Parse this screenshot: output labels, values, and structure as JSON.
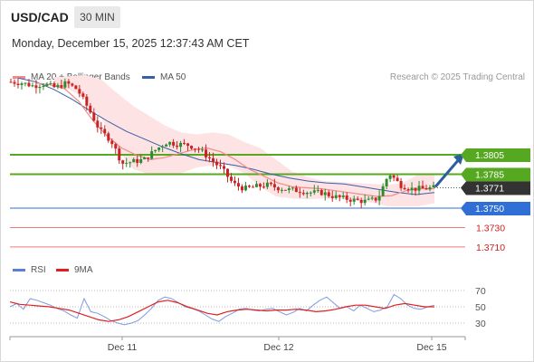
{
  "header": {
    "symbol": "USD/CAD",
    "timeframe": "30 MIN",
    "timestamp": "Monday, December 15, 2025 12:37:43 AM CET"
  },
  "legend": {
    "main": [
      {
        "label": "MA 20 + Bollinger Bands",
        "color": "#f08a8a"
      },
      {
        "label": "MA 50",
        "color": "#3a5fa8"
      }
    ],
    "credit": "Research © 2025 Trading Central",
    "rsi": [
      {
        "label": "RSI",
        "color": "#5b7fd6"
      },
      {
        "label": "9MA",
        "color": "#e02020"
      }
    ]
  },
  "colors": {
    "resistance": "#55a820",
    "pivot": "#2f6fd6",
    "support": "#f07a7a",
    "current": "#333333",
    "candle_up": "#2e8b2e",
    "candle_down": "#cc2222",
    "band_fill": "#fde3e3",
    "arrow": "#2c5e9e"
  },
  "chart_data": [
    {
      "type": "candlestick",
      "title": "USD/CAD",
      "x_ticks": [
        "Dec 11",
        "Dec 12",
        "Dec 15"
      ],
      "ylim": [
        1.37,
        1.39
      ],
      "grid": false,
      "levels": [
        {
          "value": 1.3805,
          "label": "1.3805",
          "kind": "resistance"
        },
        {
          "value": 1.3785,
          "label": "1.3785",
          "kind": "resistance"
        },
        {
          "value": 1.3771,
          "label": "1.3771",
          "kind": "current"
        },
        {
          "value": 1.375,
          "label": "1.3750",
          "kind": "pivot"
        },
        {
          "value": 1.373,
          "label": "1.3730",
          "kind": "support"
        },
        {
          "value": 1.371,
          "label": "1.3710",
          "kind": "support"
        }
      ],
      "close_path": [
        1.388,
        1.3879,
        1.3876,
        1.3878,
        1.3874,
        1.3879,
        1.3872,
        1.3852,
        1.383,
        1.382,
        1.3796,
        1.3798,
        1.38,
        1.381,
        1.3818,
        1.3816,
        1.3815,
        1.381,
        1.38,
        1.379,
        1.3775,
        1.377,
        1.3772,
        1.3774,
        1.3771,
        1.3769,
        1.3768,
        1.3766,
        1.3766,
        1.3762,
        1.376,
        1.3758,
        1.3757,
        1.376,
        1.3786,
        1.3774,
        1.377,
        1.377,
        1.3771
      ],
      "ma50_path": [
        1.3884,
        1.388,
        1.3872,
        1.3862,
        1.385,
        1.3839,
        1.3829,
        1.3821,
        1.3813,
        1.3806,
        1.38,
        1.3797,
        1.3794,
        1.379,
        1.3785,
        1.3781,
        1.3778,
        1.3776,
        1.3775,
        1.3772,
        1.3769,
        1.3766,
        1.3764,
        1.3766
      ],
      "ma20_path": [
        1.3879,
        1.3877,
        1.3873,
        1.386,
        1.384,
        1.3824,
        1.3812,
        1.3805,
        1.38,
        1.3802,
        1.3806,
        1.381,
        1.3812,
        1.3808,
        1.38,
        1.379,
        1.3783,
        1.3776,
        1.3772,
        1.3771,
        1.377,
        1.3768,
        1.3766,
        1.3764,
        1.3762,
        1.3763,
        1.3768,
        1.377,
        1.377
      ],
      "bb_upper_path": [
        1.3885,
        1.3886,
        1.3887,
        1.3882,
        1.3868,
        1.3855,
        1.3845,
        1.3835,
        1.3828,
        1.3826,
        1.3828,
        1.3826,
        1.3818,
        1.3812,
        1.38,
        1.3788,
        1.3782,
        1.3778,
        1.3777,
        1.3776,
        1.3775,
        1.3774,
        1.3776,
        1.3785,
        1.3785
      ],
      "bb_lower_path": [
        1.3875,
        1.3872,
        1.3862,
        1.3842,
        1.381,
        1.379,
        1.3785,
        1.3785,
        1.3786,
        1.3792,
        1.3794,
        1.3794,
        1.3786,
        1.3772,
        1.3762,
        1.376,
        1.3759,
        1.376,
        1.376,
        1.3758,
        1.3756,
        1.3752,
        1.3752,
        1.3752,
        1.3755
      ],
      "forecast_arrow": {
        "from": 1.3771,
        "to": 1.3805
      }
    },
    {
      "type": "line",
      "title": "RSI",
      "yticks": [
        70,
        50,
        30
      ],
      "ylim": [
        20,
        80
      ],
      "series": [
        {
          "name": "RSI",
          "values": [
            50,
            54,
            47,
            60,
            58,
            55,
            52,
            48,
            45,
            40,
            36,
            60,
            44,
            42,
            38,
            33,
            30,
            28,
            30,
            33,
            40,
            48,
            58,
            62,
            60,
            55,
            50,
            48,
            45,
            40,
            35,
            32,
            38,
            42,
            47,
            48,
            46,
            45,
            47,
            48,
            44,
            40,
            43,
            48,
            45,
            52,
            58,
            62,
            55,
            48,
            50,
            45,
            52,
            48,
            44,
            46,
            50,
            65,
            60,
            52,
            48,
            47,
            50,
            52
          ]
        },
        {
          "name": "9MA",
          "values": [
            56,
            53,
            52,
            51,
            50,
            48,
            46,
            42,
            38,
            34,
            32,
            34,
            38,
            44,
            50,
            56,
            58,
            55,
            50,
            46,
            42,
            40,
            44,
            46,
            47,
            46,
            45,
            46,
            46,
            47,
            46,
            44,
            45,
            47,
            50,
            52,
            52,
            50,
            48,
            52,
            54,
            52,
            50,
            50
          ]
        }
      ]
    }
  ]
}
